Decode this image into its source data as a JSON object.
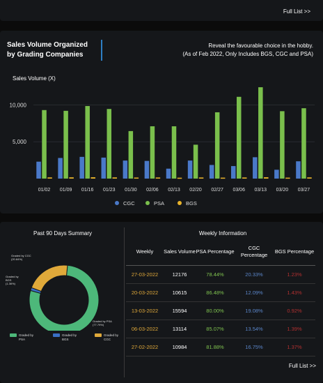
{
  "top_panel": {
    "full_list_label": "Full List >>"
  },
  "volume_chart": {
    "title_line1": "Sales Volume Organized",
    "title_line2": "by Grading Companies",
    "subtitle_line1": "Reveal the favourable choice in the hobby.",
    "subtitle_line2": "(As of Feb 2022, Only Includes BGS, CGC and PSA)",
    "y_axis_label": "Sales Volume (X)"
  },
  "chart_data": [
    {
      "type": "bar",
      "title": "Sales Volume Organized by Grading Companies",
      "ylabel": "Sales Volume (X)",
      "xlabel": "",
      "ylim": [
        0,
        12500
      ],
      "yticks": [
        "10,000",
        "5,000"
      ],
      "ytick_values": [
        10000,
        5000
      ],
      "grid": true,
      "legend_position": "bottom",
      "categories": [
        "01/02",
        "01/09",
        "01/16",
        "01/23",
        "01/30",
        "02/06",
        "02/13",
        "02/20",
        "02/27",
        "03/06",
        "03/13",
        "03/20",
        "03/27"
      ],
      "series": [
        {
          "name": "CGC",
          "color": "#4a79c9",
          "values": [
            2300,
            2800,
            2950,
            2850,
            2450,
            2400,
            1350,
            2450,
            1850,
            1700,
            2900,
            1200,
            2350
          ]
        },
        {
          "name": "PSA",
          "color": "#7abf4c",
          "values": [
            9300,
            9200,
            9850,
            9450,
            6450,
            7100,
            7100,
            4600,
            9000,
            11100,
            12400,
            9150,
            9550
          ]
        },
        {
          "name": "BGS",
          "color": "#e8b32b",
          "values": [
            160,
            170,
            180,
            160,
            140,
            150,
            120,
            150,
            130,
            150,
            180,
            130,
            160
          ]
        }
      ]
    },
    {
      "type": "pie",
      "title": "Past 90 Days Summary",
      "slices": [
        {
          "name": "Graded by PSA",
          "label": "Graded by PSA (77.79%)",
          "value": 77.79,
          "color": "#4db87a"
        },
        {
          "name": "Graded by BGS",
          "label": "Graded by BGS (1.36%)",
          "value": 1.36,
          "color": "#3a6fc4"
        },
        {
          "name": "Graded by CGC",
          "label": "Graded by CGC (20.84%)",
          "value": 20.84,
          "color": "#e0a93a"
        }
      ]
    }
  ],
  "summary": {
    "title": "Past 90 Days Summary",
    "label_cgc": "Graded by CGC (20.84%)",
    "label_bgs": "Graded by BGS (1.36%)",
    "label_psa": "Graded by PSA (77.79%)",
    "legend": [
      "Graded by PSA",
      "Graded by BGS",
      "Graded by CGC"
    ]
  },
  "weekly": {
    "title": "Weekly Information",
    "headers": [
      "Weekly",
      "Sales Volume",
      "PSA Percentage",
      "CGC Percentage",
      "BGS Percentage"
    ],
    "rows": [
      [
        "27-03-2022",
        "12176",
        "78.44%",
        "20.33%",
        "1.23%"
      ],
      [
        "20-03-2022",
        "10615",
        "86.48%",
        "12.09%",
        "1.43%"
      ],
      [
        "13-03-2022",
        "15594",
        "80.00%",
        "19.08%",
        "0.92%"
      ],
      [
        "06-03-2022",
        "13114",
        "85.07%",
        "13.54%",
        "1.39%"
      ],
      [
        "27-02-2022",
        "10984",
        "81.88%",
        "16.75%",
        "1.37%"
      ]
    ],
    "full_list_label": "Full List >>"
  }
}
